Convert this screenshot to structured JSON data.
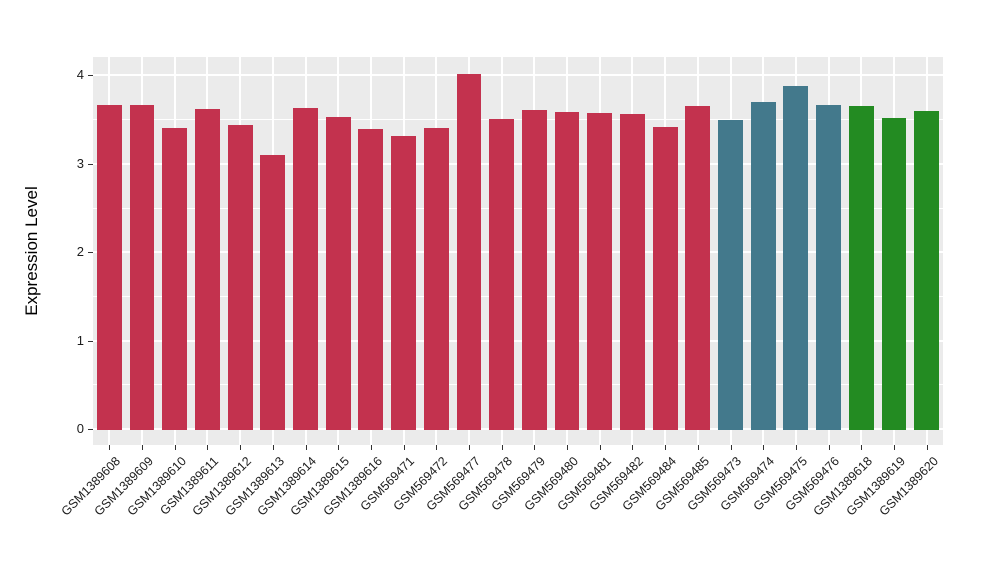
{
  "figure": {
    "background": "#FFFFFF",
    "panel_background": "#EBEBEB",
    "gridline_color": "#FFFFFF",
    "axis_text_color": "#1C1C1C",
    "axis_title_color": "#000000"
  },
  "chart_data": {
    "type": "bar",
    "title": "",
    "xlabel": "",
    "ylabel": "Expression Level",
    "ylim": [
      -0.18,
      4.21
    ],
    "yticks": [
      0,
      1,
      2,
      3,
      4
    ],
    "minor_yticks": [
      0.5,
      1.5,
      2.5,
      3.5
    ],
    "grid": "on",
    "legend": "none",
    "categories": [
      "GSM1389608",
      "GSM1389609",
      "GSM1389610",
      "GSM1389611",
      "GSM1389612",
      "GSM1389613",
      "GSM1389614",
      "GSM1389615",
      "GSM1389616",
      "GSM569471",
      "GSM569472",
      "GSM569477",
      "GSM569478",
      "GSM569479",
      "GSM569480",
      "GSM569481",
      "GSM569482",
      "GSM569484",
      "GSM569485",
      "GSM569473",
      "GSM569474",
      "GSM569475",
      "GSM569476",
      "GSM1389618",
      "GSM1389619",
      "GSM1389620"
    ],
    "values": [
      3.66,
      3.66,
      3.41,
      3.62,
      3.44,
      3.1,
      3.63,
      3.53,
      3.39,
      3.31,
      3.41,
      4.02,
      3.51,
      3.61,
      3.59,
      3.58,
      3.56,
      3.42,
      3.65,
      3.49,
      3.7,
      3.88,
      3.67,
      3.65,
      3.52,
      3.6
    ],
    "bar_groups": [
      "group1",
      "group1",
      "group1",
      "group1",
      "group1",
      "group1",
      "group1",
      "group1",
      "group1",
      "group1",
      "group1",
      "group1",
      "group1",
      "group1",
      "group1",
      "group1",
      "group1",
      "group1",
      "group1",
      "group2",
      "group2",
      "group2",
      "group2",
      "group3",
      "group3",
      "group3"
    ],
    "group_colors": {
      "group1": "#C3324E",
      "group2": "#43798C",
      "group3": "#238B22"
    }
  }
}
